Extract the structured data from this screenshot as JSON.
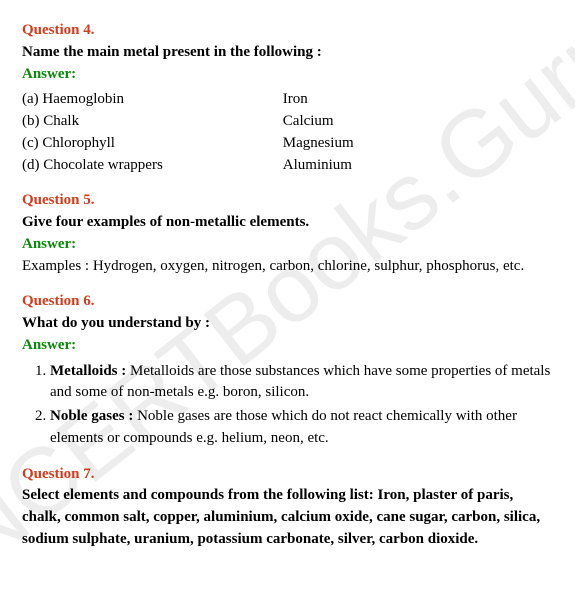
{
  "watermark": "NCERTBooks.Guru",
  "q4": {
    "label": "Question 4.",
    "text": "Name the main metal present in the following :",
    "answer_label": "Answer:",
    "rows": [
      {
        "l": "(a) Haemoglobin",
        "r": "Iron"
      },
      {
        "l": "(b) Chalk",
        "r": "Calcium"
      },
      {
        "l": "(c) Chlorophyll",
        "r": "Magnesium"
      },
      {
        "l": "(d) Chocolate wrappers",
        "r": "Aluminium"
      }
    ]
  },
  "q5": {
    "label": "Question 5.",
    "text": "Give four examples of non-metallic elements.",
    "answer_label": "Answer:",
    "body": "Examples : Hydrogen, oxygen, nitrogen, carbon, chlorine, sulphur, phosphorus, etc."
  },
  "q6": {
    "label": "Question 6.",
    "text": "What do you understand by :",
    "answer_label": "Answer:",
    "items": [
      {
        "term": "Metalloids :",
        "def": " Metalloids are those substances which have some properties of metals and some of non-metals e.g. boron, silicon."
      },
      {
        "term": "Noble gases :",
        "def": " Noble gases are those which do not react chemically with other elements or compounds e.g. helium, neon, etc."
      }
    ]
  },
  "q7": {
    "label": "Question 7.",
    "text": "Select elements and compounds from the following list: Iron, plaster of paris, chalk, common salt, copper, aluminium, calcium oxide, cane sugar, carbon, silica, sodium sulphate, uranium, potassium carbonate, silver, carbon dioxide."
  }
}
